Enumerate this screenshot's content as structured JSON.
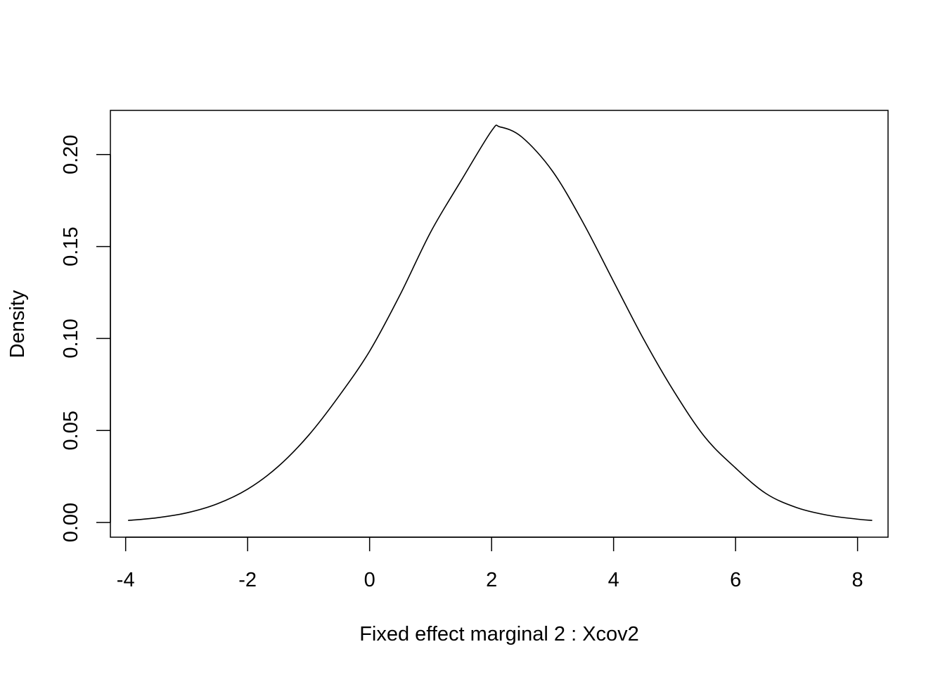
{
  "chart_data": {
    "type": "line",
    "title": "",
    "xlabel": "Fixed effect marginal 2 : Xcov2",
    "ylabel": "Density",
    "xlim": [
      -4.25,
      8.5
    ],
    "ylim": [
      -0.008,
      0.224
    ],
    "x_ticks": [
      -4,
      -2,
      0,
      2,
      4,
      6,
      8
    ],
    "x_tick_labels": [
      "-4",
      "-2",
      "0",
      "2",
      "4",
      "6",
      "8"
    ],
    "y_ticks": [
      0.0,
      0.05,
      0.1,
      0.15,
      0.2
    ],
    "y_tick_labels": [
      "0.00",
      "0.05",
      "0.10",
      "0.15",
      "0.20"
    ],
    "grid": false,
    "legend": "none",
    "line_color": "#000000",
    "series": [
      {
        "x": [
          -3.96,
          -3.5,
          -3.0,
          -2.5,
          -2.0,
          -1.5,
          -1.0,
          -0.5,
          0.0,
          0.5,
          1.0,
          1.5,
          2.0,
          2.14,
          2.5,
          3.0,
          3.5,
          4.0,
          4.5,
          5.0,
          5.5,
          6.0,
          6.5,
          7.0,
          7.5,
          8.0,
          8.24
        ],
        "y": [
          0.0011,
          0.0025,
          0.0052,
          0.0101,
          0.0181,
          0.0304,
          0.0474,
          0.0688,
          0.0931,
          0.1238,
          0.1578,
          0.1858,
          0.2129,
          0.215,
          0.2094,
          0.1909,
          0.163,
          0.131,
          0.0992,
          0.0707,
          0.0463,
          0.0296,
          0.0157,
          0.0081,
          0.004,
          0.0018,
          0.0011
        ]
      }
    ]
  }
}
